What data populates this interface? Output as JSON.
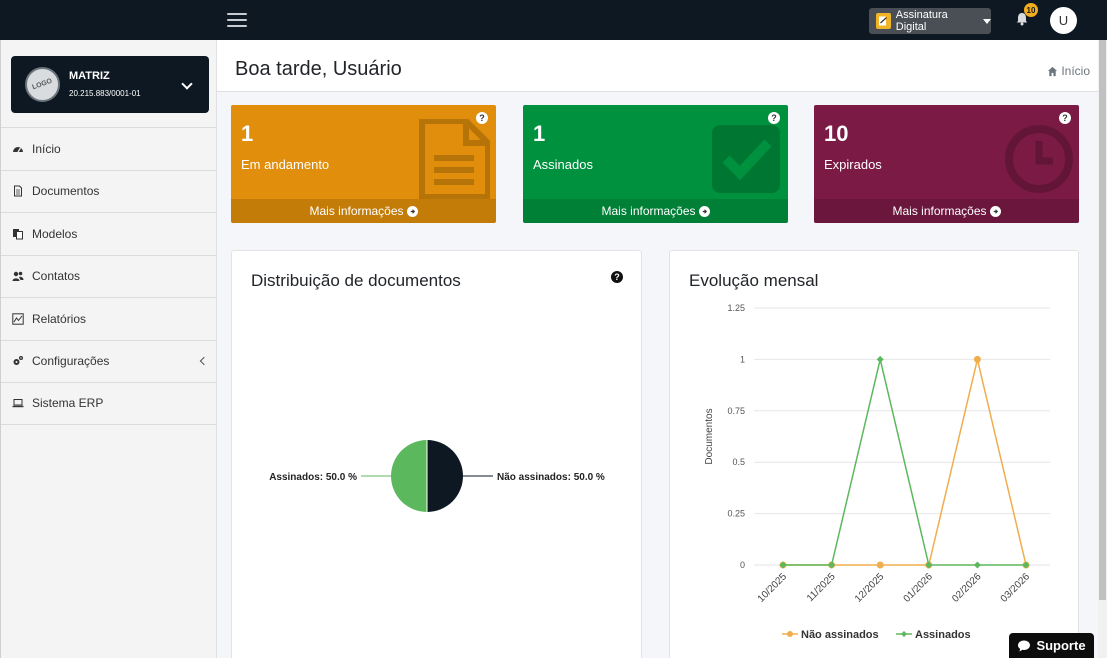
{
  "topbar": {
    "app_select_label": "Assinatura Digital",
    "notification_count": "10",
    "avatar_initial": "U"
  },
  "company": {
    "logo_text": "LOGO",
    "name": "MATRIZ",
    "cnpj": "20.215.883/0001-01"
  },
  "sidebar": {
    "items": [
      {
        "label": "Início",
        "icon": "dashboard-icon"
      },
      {
        "label": "Documentos",
        "icon": "document-icon"
      },
      {
        "label": "Modelos",
        "icon": "copy-icon"
      },
      {
        "label": "Contatos",
        "icon": "users-icon"
      },
      {
        "label": "Relatórios",
        "icon": "chart-icon"
      },
      {
        "label": "Configurações",
        "icon": "cogs-icon"
      },
      {
        "label": "Sistema ERP",
        "icon": "laptop-icon"
      }
    ]
  },
  "header": {
    "greeting": "Boa tarde, Usuário",
    "breadcrumb": "Início"
  },
  "boxes": [
    {
      "count": "1",
      "label": "Em andamento",
      "footer": "Mais informações",
      "color": "#e08e0b",
      "icon": "file-text-icon"
    },
    {
      "count": "1",
      "label": "Assinados",
      "footer": "Mais informações",
      "color": "#00913f",
      "icon": "check-square-icon"
    },
    {
      "count": "10",
      "label": "Expirados",
      "footer": "Mais informações",
      "color": "#7a1a45",
      "icon": "clock-icon"
    }
  ],
  "distribution": {
    "title": "Distribuição de documentos"
  },
  "evolution": {
    "title": "Evolução mensal"
  },
  "support": {
    "label": "Suporte"
  },
  "chart_data": [
    {
      "type": "pie",
      "title": "Distribuição de documentos",
      "slices": [
        {
          "label": "Assinados",
          "value": 50.0,
          "display": "Assinados: 50.0 %",
          "color": "#5cb85c"
        },
        {
          "label": "Não assinados",
          "value": 50.0,
          "display": "Não assinados: 50.0 %",
          "color": "#0d1822"
        }
      ]
    },
    {
      "type": "line",
      "title": "Evolução mensal",
      "ylabel": "Documentos",
      "ylim": [
        0,
        1.25
      ],
      "yticks": [
        "0",
        "0.25",
        "0.5",
        "0.75",
        "1",
        "1.25"
      ],
      "categories": [
        "10/2025",
        "11/2025",
        "12/2025",
        "01/2026",
        "02/2026",
        "03/2026"
      ],
      "grid": true,
      "legend": "bottom",
      "series": [
        {
          "name": "Não assinados",
          "color": "#f0ad4e",
          "values": [
            0,
            0,
            0,
            0,
            1,
            0
          ]
        },
        {
          "name": "Assinados",
          "color": "#5cb85c",
          "values": [
            0,
            0,
            1,
            0,
            0,
            0
          ]
        }
      ]
    }
  ]
}
